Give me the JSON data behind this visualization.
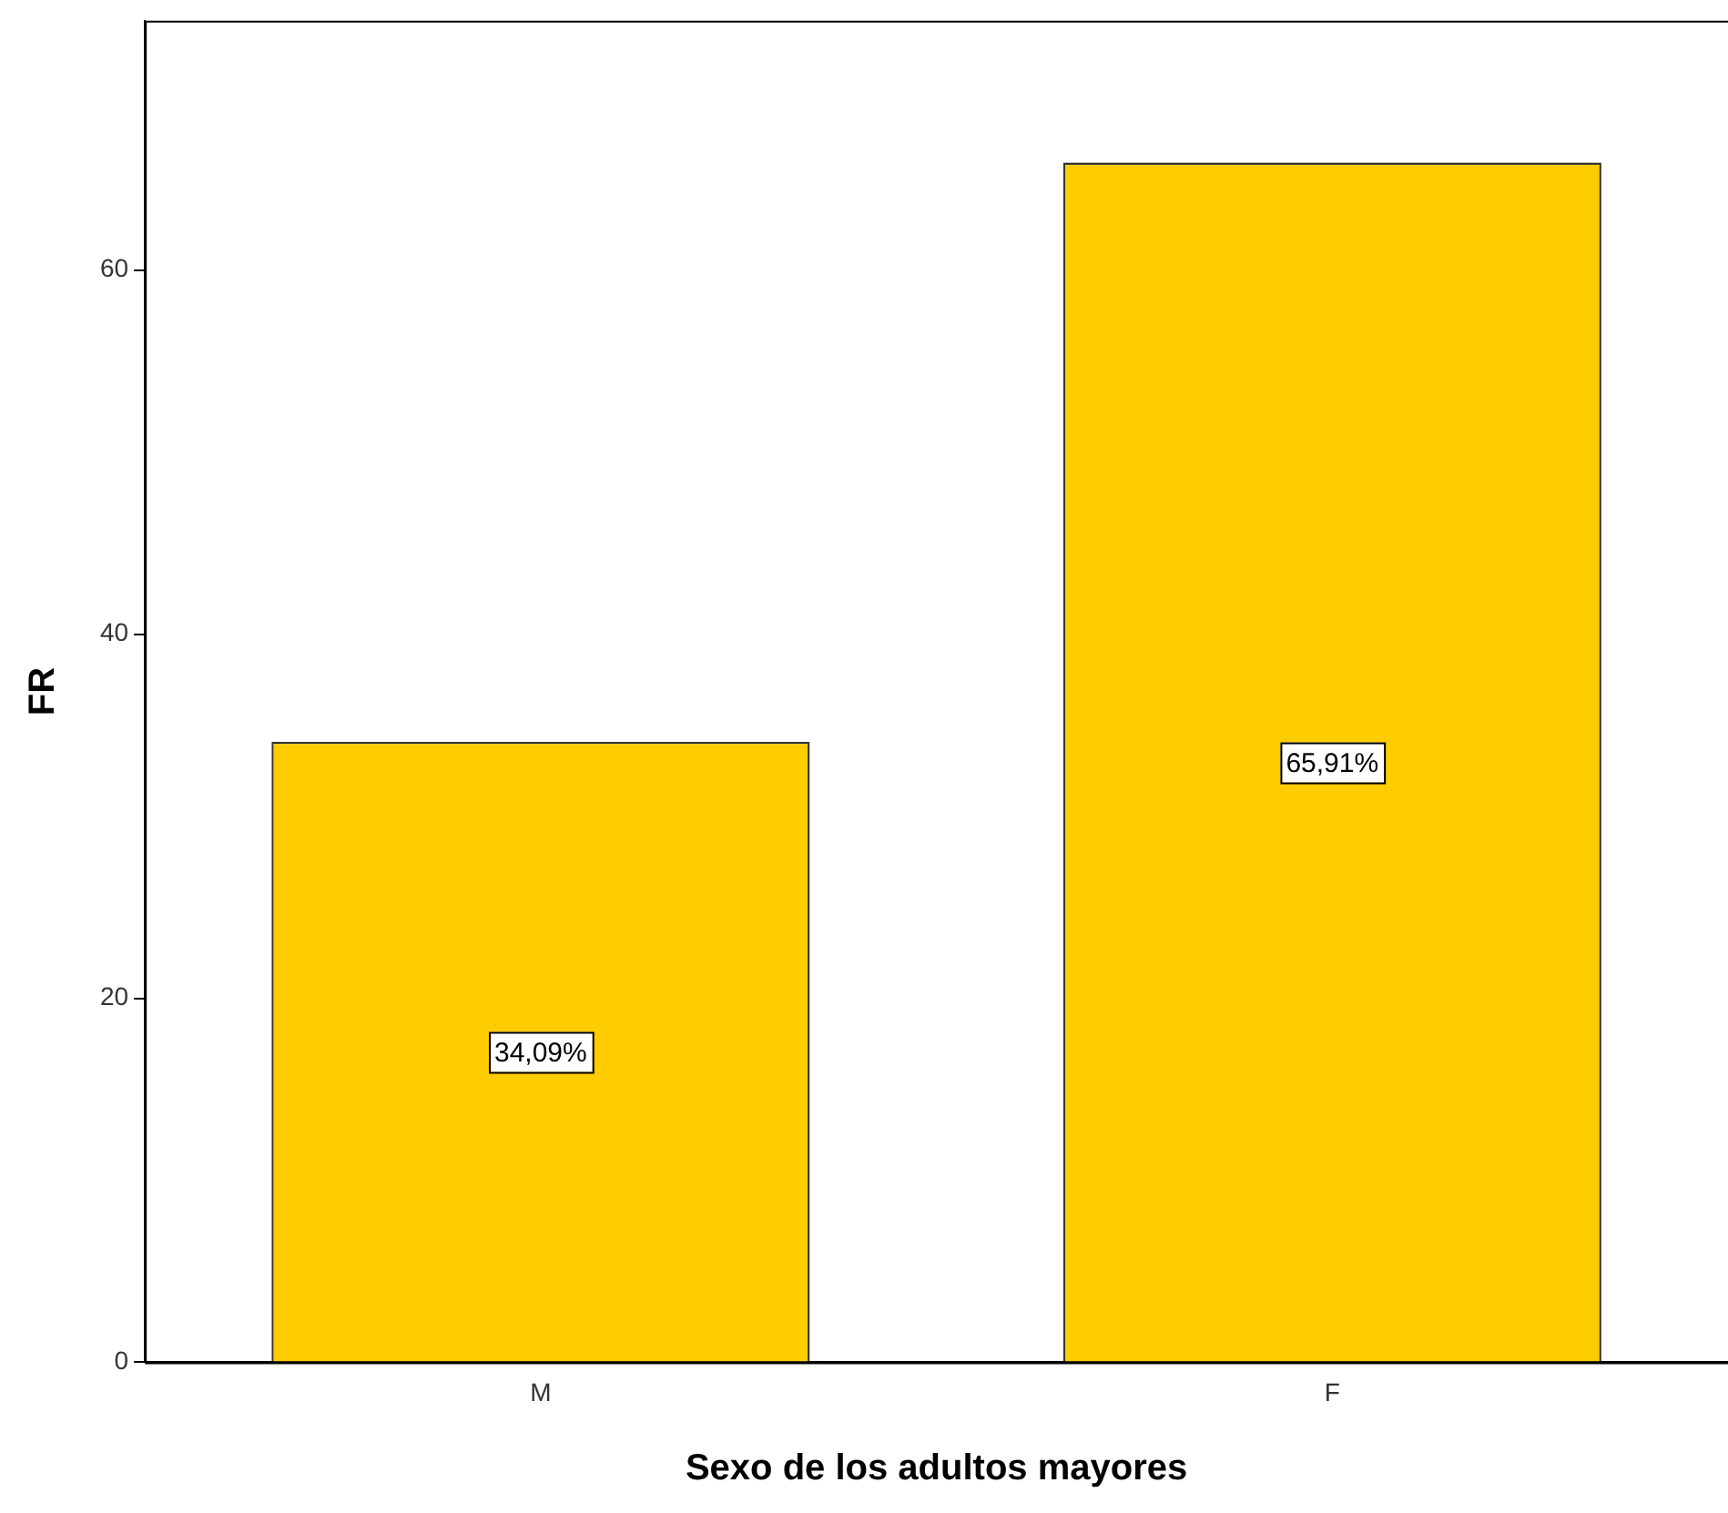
{
  "chart_data": {
    "type": "bar",
    "xlabel": "Sexo de los adultos mayores",
    "ylabel": "FR",
    "categories": [
      "M",
      "F"
    ],
    "values": [
      34.09,
      65.91
    ],
    "value_labels": [
      "34,09%",
      "65,91%"
    ],
    "color": "#ffcc00",
    "ylim": [
      0,
      73.7
    ],
    "yticks": [
      0,
      20,
      40,
      60
    ],
    "grid": false,
    "legend": false
  }
}
